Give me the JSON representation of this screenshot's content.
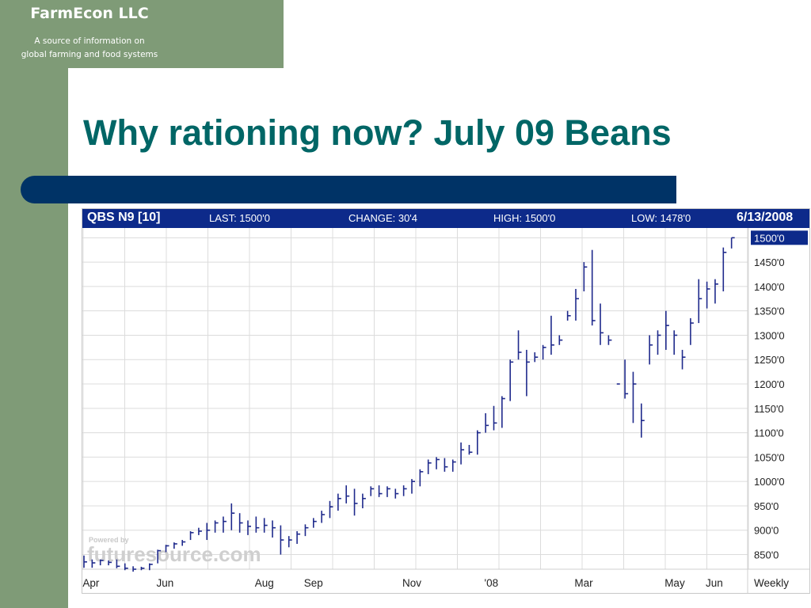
{
  "brand": {
    "name": "FarmEcon LLC",
    "tagline_1": "A source of information on",
    "tagline_2": "global farming and food systems"
  },
  "slide": {
    "title": "Why rationing now?  July 09 Beans"
  },
  "chart_header": {
    "symbol": "QBS N9 [10]",
    "last": "LAST: 1500'0",
    "change": "CHANGE: 30'4",
    "high": "HIGH: 1500'0",
    "low": "LOW: 1478'0",
    "date": "6/13/2008"
  },
  "watermark": "futuresource.com",
  "watermark_small": "Powered by",
  "colors": {
    "accent": "#006666",
    "bar": "#003366",
    "panel": "#7f9b77",
    "header": "#0d2a8a",
    "series": "#1f2a8c"
  },
  "chart_data": {
    "type": "ohlc",
    "interval": "Weekly",
    "ylim": [
      820,
      1520
    ],
    "ytick_values": [
      850,
      900,
      950,
      1000,
      1050,
      1100,
      1150,
      1200,
      1250,
      1300,
      1350,
      1400,
      1450,
      1500
    ],
    "ytick_labels": [
      "850'0",
      "900'0",
      "950'0",
      "1000'0",
      "1050'0",
      "1100'0",
      "1150'0",
      "1200'0",
      "1250'0",
      "1300'0",
      "1350'0",
      "1400'0",
      "1450'0",
      "1500'0"
    ],
    "last_label": "1500'0",
    "x_labels": [
      "Apr",
      "Jun",
      "Aug",
      "Sep",
      "Nov",
      "'08",
      "Mar",
      "May",
      "Jun",
      "Weekly"
    ],
    "x_label_week": [
      1,
      10,
      22,
      28,
      40,
      50,
      61,
      72,
      77
    ],
    "weeks": 80,
    "grid": true,
    "bars": [
      [
        848,
        823,
        835
      ],
      [
        840,
        823,
        833
      ],
      [
        840,
        828,
        838
      ],
      [
        838,
        828,
        834
      ],
      [
        840,
        822,
        826
      ],
      [
        832,
        818,
        822
      ],
      [
        826,
        815,
        820
      ],
      [
        825,
        818,
        822
      ],
      [
        832,
        818,
        830
      ],
      [
        860,
        832,
        858
      ],
      [
        870,
        855,
        868
      ],
      [
        875,
        862,
        872
      ],
      [
        880,
        868,
        876
      ],
      [
        898,
        880,
        895
      ],
      [
        905,
        890,
        898
      ],
      [
        915,
        880,
        900
      ],
      [
        920,
        895,
        915
      ],
      [
        928,
        895,
        918
      ],
      [
        955,
        900,
        935
      ],
      [
        935,
        895,
        915
      ],
      [
        920,
        890,
        908
      ],
      [
        928,
        895,
        905
      ],
      [
        925,
        895,
        910
      ],
      [
        920,
        885,
        905
      ],
      [
        910,
        850,
        880
      ],
      [
        888,
        865,
        880
      ],
      [
        898,
        872,
        892
      ],
      [
        912,
        888,
        905
      ],
      [
        925,
        905,
        918
      ],
      [
        940,
        915,
        932
      ],
      [
        960,
        925,
        948
      ],
      [
        975,
        940,
        965
      ],
      [
        992,
        955,
        970
      ],
      [
        985,
        930,
        955
      ],
      [
        975,
        945,
        965
      ],
      [
        990,
        970,
        985
      ],
      [
        992,
        968,
        975
      ],
      [
        990,
        968,
        985
      ],
      [
        985,
        965,
        975
      ],
      [
        992,
        970,
        985
      ],
      [
        1005,
        975,
        1000
      ],
      [
        1025,
        990,
        1020
      ],
      [
        1045,
        1015,
        1038
      ],
      [
        1050,
        1025,
        1045
      ],
      [
        1048,
        1020,
        1030
      ],
      [
        1045,
        1020,
        1040
      ],
      [
        1080,
        1035,
        1065
      ],
      [
        1075,
        1055,
        1060
      ],
      [
        1105,
        1055,
        1100
      ],
      [
        1140,
        1100,
        1115
      ],
      [
        1155,
        1105,
        1120
      ],
      [
        1175,
        1110,
        1170
      ],
      [
        1250,
        1165,
        1245
      ],
      [
        1310,
        1250,
        1265
      ],
      [
        1270,
        1175,
        1245
      ],
      [
        1265,
        1245,
        1255
      ],
      [
        1280,
        1250,
        1275
      ],
      [
        1340,
        1260,
        1280
      ],
      [
        1300,
        1280,
        1290
      ],
      [
        1350,
        1330,
        1340
      ],
      [
        1395,
        1330,
        1375
      ],
      [
        1450,
        1390,
        1440
      ],
      [
        1475,
        1320,
        1330
      ],
      [
        1365,
        1280,
        1305
      ],
      [
        1300,
        1280,
        1290
      ],
      [
        1200,
        1200,
        1200
      ],
      [
        1250,
        1170,
        1180
      ],
      [
        1225,
        1120,
        1200
      ],
      [
        1160,
        1090,
        1125
      ],
      [
        1300,
        1240,
        1280
      ],
      [
        1310,
        1260,
        1300
      ],
      [
        1350,
        1270,
        1320
      ],
      [
        1310,
        1260,
        1300
      ],
      [
        1270,
        1230,
        1255
      ],
      [
        1335,
        1280,
        1325
      ],
      [
        1415,
        1325,
        1375
      ],
      [
        1410,
        1355,
        1395
      ],
      [
        1415,
        1365,
        1405
      ],
      [
        1480,
        1390,
        1470
      ],
      [
        1500,
        1478,
        1500
      ]
    ]
  }
}
